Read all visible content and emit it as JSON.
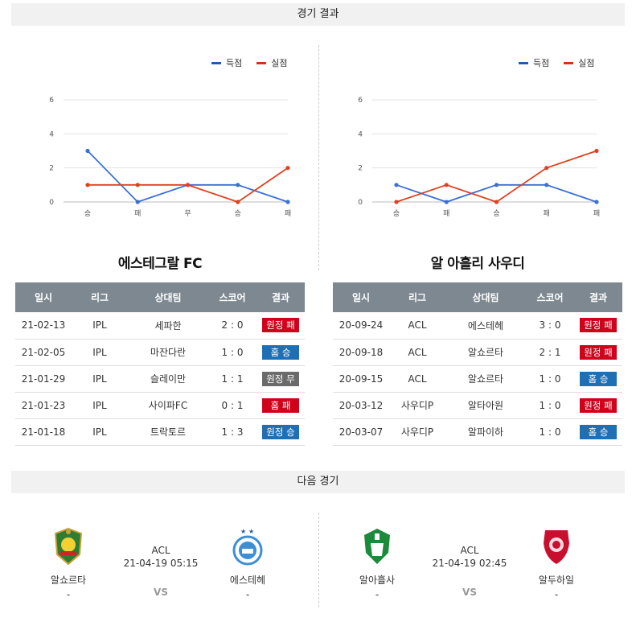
{
  "sections": {
    "results_title": "경기 결과",
    "next_title": "다음 경기"
  },
  "legend": {
    "scored": "득점",
    "conceded": "실점",
    "scored_color": "#1f5da8",
    "conceded_color": "#d0341d"
  },
  "charts": [
    {
      "chart_data": {
        "type": "line",
        "categories": [
          "승",
          "패",
          "무",
          "승",
          "패"
        ],
        "ylim": [
          0,
          6
        ],
        "yticks": [
          "0",
          "2",
          "4",
          "6"
        ],
        "series": [
          {
            "name": "득점",
            "values": [
              3,
              0,
              1,
              1,
              0
            ],
            "color": "#3a6fd4"
          },
          {
            "name": "실점",
            "values": [
              1,
              1,
              1,
              0,
              2
            ],
            "color": "#e0401d"
          }
        ],
        "legend": "top-right",
        "grid": true
      }
    },
    {
      "chart_data": {
        "type": "line",
        "categories": [
          "승",
          "패",
          "승",
          "패",
          "패"
        ],
        "ylim": [
          0,
          6
        ],
        "yticks": [
          "0",
          "2",
          "4",
          "6"
        ],
        "series": [
          {
            "name": "득점",
            "values": [
              1,
              0,
              1,
              1,
              0
            ],
            "color": "#3a6fd4"
          },
          {
            "name": "실점",
            "values": [
              0,
              1,
              0,
              2,
              3
            ],
            "color": "#e0401d"
          }
        ],
        "legend": "top-right",
        "grid": true
      }
    }
  ],
  "teams": {
    "left": {
      "title": "에스테그랄 FC",
      "headers": [
        "일시",
        "리그",
        "상대팀",
        "스코어",
        "결과"
      ],
      "rows": [
        {
          "date": "21-02-13",
          "league": "IPL",
          "opponent": "세파한",
          "score": "2 : 0",
          "result": "원정 패",
          "color": "red"
        },
        {
          "date": "21-02-05",
          "league": "IPL",
          "opponent": "마잔다란",
          "score": "1 : 0",
          "result": "홈 승",
          "color": "blue"
        },
        {
          "date": "21-01-29",
          "league": "IPL",
          "opponent": "슬레이만",
          "score": "1 : 1",
          "result": "원정 무",
          "color": "gray"
        },
        {
          "date": "21-01-23",
          "league": "IPL",
          "opponent": "사이파FC",
          "score": "0 : 1",
          "result": "홈 패",
          "color": "red"
        },
        {
          "date": "21-01-18",
          "league": "IPL",
          "opponent": "트락토르",
          "score": "1 : 3",
          "result": "원정 승",
          "color": "blue"
        }
      ]
    },
    "right": {
      "title": "알 아흘리 사우디",
      "headers": [
        "일시",
        "리그",
        "상대팀",
        "스코어",
        "결과"
      ],
      "rows": [
        {
          "date": "20-09-24",
          "league": "ACL",
          "opponent": "에스테헤",
          "score": "3 : 0",
          "result": "원정 패",
          "color": "red"
        },
        {
          "date": "20-09-18",
          "league": "ACL",
          "opponent": "알쇼르타",
          "score": "2 : 1",
          "result": "원정 패",
          "color": "red"
        },
        {
          "date": "20-09-15",
          "league": "ACL",
          "opponent": "알쇼르타",
          "score": "1 : 0",
          "result": "홈 승",
          "color": "blue"
        },
        {
          "date": "20-03-12",
          "league": "사우디P",
          "opponent": "알타아원",
          "score": "1 : 0",
          "result": "원정 패",
          "color": "red"
        },
        {
          "date": "20-03-07",
          "league": "사우디P",
          "opponent": "알파이하",
          "score": "1 : 0",
          "result": "홈 승",
          "color": "blue"
        }
      ]
    }
  },
  "next_matches": [
    {
      "home": "알쇼르타",
      "away": "에스테헤",
      "league": "ACL",
      "time": "21-04-19 05:15",
      "vs": "VS",
      "home_extra": "-",
      "away_extra": "-"
    },
    {
      "home": "알아흘사",
      "away": "알두하일",
      "league": "ACL",
      "time": "21-04-19 02:45",
      "vs": "VS",
      "home_extra": "-",
      "away_extra": "-"
    }
  ],
  "badge_colors": {
    "red": "#d0021b",
    "blue": "#1f6fb5",
    "gray": "#6b6b6b"
  }
}
